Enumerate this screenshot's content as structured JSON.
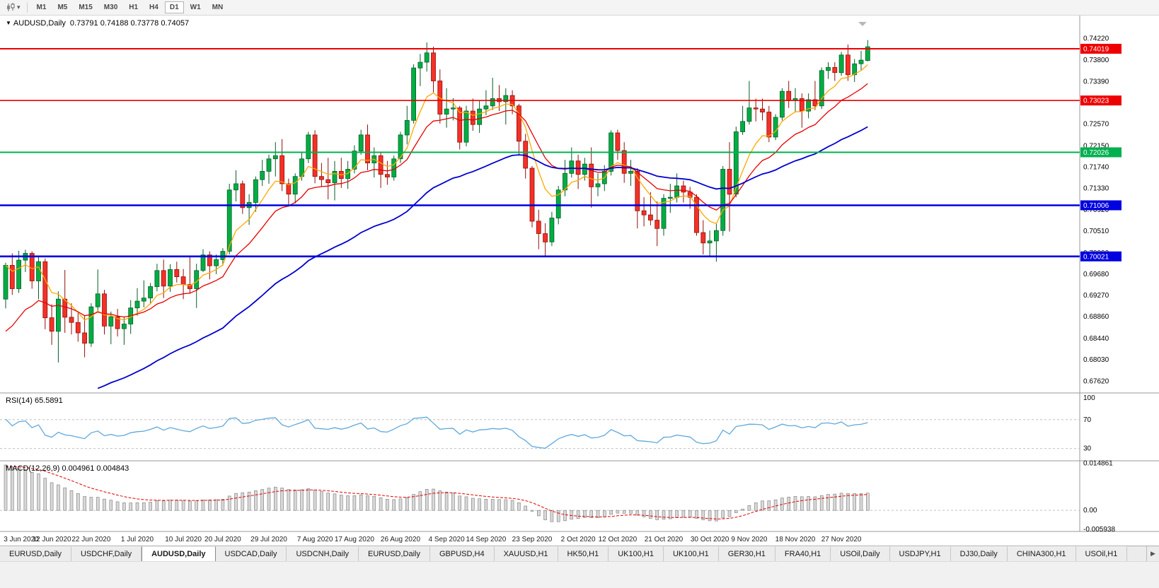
{
  "icons": {
    "dropdown_caret": "▾",
    "title_caret": "▼",
    "tab_scroll": "▶"
  },
  "toolbar": {
    "timeframes": [
      "M1",
      "M5",
      "M15",
      "M30",
      "H1",
      "H4",
      "D1",
      "W1",
      "MN"
    ],
    "active": "D1"
  },
  "chart": {
    "symbol": "AUDUSD,Daily",
    "ohlc": "0.73791 0.74188 0.73778 0.74057"
  },
  "indicators": {
    "rsi_label": "RSI(14) 65.5891",
    "macd_label": "MACD(12,26,9) 0.004961 0.004843"
  },
  "active_tab": 2,
  "tabs": [
    {
      "label": "EURUSD,Daily"
    },
    {
      "label": "USDCHF,Daily"
    },
    {
      "label": "AUDUSD,Daily"
    },
    {
      "label": "USDCAD,Daily"
    },
    {
      "label": "USDCNH,Daily"
    },
    {
      "label": "EURUSD,Daily"
    },
    {
      "label": "GBPUSD,H4"
    },
    {
      "label": "XAUUSD,H1"
    },
    {
      "label": "HK50,H1"
    },
    {
      "label": "UK100,H1"
    },
    {
      "label": "UK100,H1"
    },
    {
      "label": "GER30,H1"
    },
    {
      "label": "FRA40,H1"
    },
    {
      "label": "USOil,Daily"
    },
    {
      "label": "USDJPY,H1"
    },
    {
      "label": "DJ30,Daily"
    },
    {
      "label": "CHINA300,H1"
    },
    {
      "label": "USOil,H1"
    }
  ],
  "chart_data": {
    "type": "candlestick",
    "symbol": "AUDUSD",
    "timeframe": "Daily",
    "price_range": {
      "max": 0.7455,
      "min": 0.6742
    },
    "y_axis_labels": [
      "0.74220",
      "0.73800",
      "0.73390",
      "0.72980",
      "0.72570",
      "0.72150",
      "0.71740",
      "0.71330",
      "0.70920",
      "0.70510",
      "0.70090",
      "0.69680",
      "0.69270",
      "0.68860",
      "0.68440",
      "0.68030",
      "0.67620"
    ],
    "x_axis_labels": [
      {
        "i": 0,
        "label": "3 Jun 2020"
      },
      {
        "i": 7,
        "label": "12 Jun 2020"
      },
      {
        "i": 13,
        "label": "22 Jun 2020"
      },
      {
        "i": 20,
        "label": "1 Jul 2020"
      },
      {
        "i": 27,
        "label": "10 Jul 2020"
      },
      {
        "i": 33,
        "label": "20 Jul 2020"
      },
      {
        "i": 40,
        "label": "29 Jul 2020"
      },
      {
        "i": 47,
        "label": "7 Aug 2020"
      },
      {
        "i": 53,
        "label": "17 Aug 2020"
      },
      {
        "i": 60,
        "label": "26 Aug 2020"
      },
      {
        "i": 67,
        "label": "4 Sep 2020"
      },
      {
        "i": 73,
        "label": "14 Sep 2020"
      },
      {
        "i": 80,
        "label": "23 Sep 2020"
      },
      {
        "i": 87,
        "label": "2 Oct 2020"
      },
      {
        "i": 93,
        "label": "12 Oct 2020"
      },
      {
        "i": 100,
        "label": "21 Oct 2020"
      },
      {
        "i": 107,
        "label": "30 Oct 2020"
      },
      {
        "i": 113,
        "label": "9 Nov 2020"
      },
      {
        "i": 120,
        "label": "18 Nov 2020"
      },
      {
        "i": 127,
        "label": "27 Nov 2020"
      }
    ],
    "hlines": [
      {
        "price": 0.74019,
        "label": "0.74019",
        "color": "#ee0000",
        "width": 2
      },
      {
        "price": 0.73023,
        "label": "0.73023",
        "color": "#ee0000",
        "width": 1.6
      },
      {
        "price": 0.72026,
        "label": "0.72026",
        "color": "#00b050",
        "width": 2
      },
      {
        "price": 0.71006,
        "label": "0.71006",
        "color": "#0000e0",
        "width": 2.6
      },
      {
        "price": 0.70021,
        "label": "0.70021",
        "color": "#0000e0",
        "width": 2.6
      }
    ],
    "colors": {
      "up": "#00ad43",
      "up_border": "#055e28",
      "down": "#f53026",
      "down_border": "#8f100b"
    },
    "ma": [
      {
        "name": "ma-fast-line",
        "period": 7,
        "seed": 0.6985,
        "color": "#ffa800",
        "width": 1.3
      },
      {
        "name": "ma-mid-line",
        "period": 15,
        "seed": 0.684,
        "color": "#e60000",
        "width": 1.3
      },
      {
        "name": "ma-slow-line",
        "period": 45,
        "seed": 0.659,
        "color": "#0000d0",
        "width": 1.8
      }
    ],
    "rsi": {
      "label": "RSI(14)",
      "value": "65.5891",
      "seed_gain": 0.0016,
      "seed_loss": 0.00066,
      "levels": [
        70,
        30
      ],
      "axis": [
        {
          "v": 100,
          "label": "100"
        },
        {
          "v": 70,
          "label": "70"
        },
        {
          "v": 30,
          "label": "30"
        }
      ],
      "color": "#5fa8dc",
      "range_max": 105,
      "range_min": 15
    },
    "macd": {
      "label": "MACD(12,26,9)",
      "value": "0.004961",
      "signal_value": "0.004843",
      "seed_fast": 0.6895,
      "seed_slow": 0.6748,
      "seed_signal": 0.0138,
      "range_max": 0.0152,
      "range_min": -0.0062,
      "axis": [
        {
          "v": 0.014861,
          "label": "0.014861"
        },
        {
          "v": 0,
          "label": "0.00"
        },
        {
          "v": -0.005938,
          "label": "-0.005938"
        }
      ],
      "bar_fill": "#d8d8d8",
      "bar_stroke": "#7a7a7a",
      "signal_color": "#e60000"
    },
    "candles": [
      [
        0.692,
        0.699,
        0.6902,
        0.6985
      ],
      [
        0.6985,
        0.7008,
        0.6928,
        0.694
      ],
      [
        0.694,
        0.7013,
        0.6932,
        0.6995
      ],
      [
        0.6995,
        0.7015,
        0.6972,
        0.7008
      ],
      [
        0.7008,
        0.7012,
        0.694,
        0.6955
      ],
      [
        0.6955,
        0.7002,
        0.692,
        0.6992
      ],
      [
        0.6992,
        0.6998,
        0.6862,
        0.6884
      ],
      [
        0.6884,
        0.691,
        0.6832,
        0.6858
      ],
      [
        0.6858,
        0.6935,
        0.6798,
        0.692
      ],
      [
        0.692,
        0.6976,
        0.6855,
        0.6885
      ],
      [
        0.6885,
        0.6912,
        0.6852,
        0.6875
      ],
      [
        0.6875,
        0.6895,
        0.6838,
        0.6855
      ],
      [
        0.6855,
        0.6888,
        0.6808,
        0.6835
      ],
      [
        0.6835,
        0.6912,
        0.6828,
        0.6905
      ],
      [
        0.6905,
        0.6977,
        0.6898,
        0.693
      ],
      [
        0.693,
        0.6938,
        0.6852,
        0.6868
      ],
      [
        0.6868,
        0.6896,
        0.6833,
        0.6886
      ],
      [
        0.6886,
        0.6901,
        0.6848,
        0.6863
      ],
      [
        0.6863,
        0.6886,
        0.6832,
        0.6872
      ],
      [
        0.6872,
        0.6918,
        0.6853,
        0.6903
      ],
      [
        0.6903,
        0.6941,
        0.6888,
        0.6916
      ],
      [
        0.6916,
        0.6956,
        0.6904,
        0.6922
      ],
      [
        0.6922,
        0.6951,
        0.691,
        0.6944
      ],
      [
        0.6944,
        0.6988,
        0.6935,
        0.6975
      ],
      [
        0.6975,
        0.6996,
        0.6922,
        0.6945
      ],
      [
        0.6945,
        0.6987,
        0.6934,
        0.6977
      ],
      [
        0.6977,
        0.6992,
        0.6952,
        0.6963
      ],
      [
        0.6963,
        0.6978,
        0.692,
        0.6948
      ],
      [
        0.6948,
        0.7002,
        0.693,
        0.694
      ],
      [
        0.694,
        0.6988,
        0.6903,
        0.6975
      ],
      [
        0.6975,
        0.7016,
        0.6972,
        0.7005
      ],
      [
        0.7005,
        0.7012,
        0.6958,
        0.6984
      ],
      [
        0.6984,
        0.7006,
        0.6968,
        0.6996
      ],
      [
        0.6996,
        0.7018,
        0.6984,
        0.7012
      ],
      [
        0.7012,
        0.7142,
        0.7006,
        0.713
      ],
      [
        0.713,
        0.7168,
        0.7108,
        0.7142
      ],
      [
        0.7142,
        0.7148,
        0.7084,
        0.7096
      ],
      [
        0.7096,
        0.7122,
        0.7063,
        0.7106
      ],
      [
        0.7106,
        0.7156,
        0.7088,
        0.715
      ],
      [
        0.715,
        0.7188,
        0.7138,
        0.7166
      ],
      [
        0.7166,
        0.7198,
        0.7142,
        0.719
      ],
      [
        0.719,
        0.7222,
        0.7156,
        0.7196
      ],
      [
        0.7196,
        0.7228,
        0.7128,
        0.7142
      ],
      [
        0.7142,
        0.7152,
        0.7098,
        0.7122
      ],
      [
        0.7122,
        0.7162,
        0.7104,
        0.7156
      ],
      [
        0.7156,
        0.7202,
        0.7148,
        0.719
      ],
      [
        0.719,
        0.7242,
        0.7182,
        0.7236
      ],
      [
        0.7236,
        0.7245,
        0.7143,
        0.7156
      ],
      [
        0.7156,
        0.7182,
        0.7136,
        0.715
      ],
      [
        0.715,
        0.7192,
        0.7112,
        0.7144
      ],
      [
        0.7144,
        0.7186,
        0.711,
        0.7166
      ],
      [
        0.7166,
        0.7192,
        0.7134,
        0.7152
      ],
      [
        0.7152,
        0.7186,
        0.7132,
        0.717
      ],
      [
        0.717,
        0.7216,
        0.7162,
        0.7205
      ],
      [
        0.7205,
        0.7246,
        0.7198,
        0.7236
      ],
      [
        0.7236,
        0.7256,
        0.7168,
        0.7182
      ],
      [
        0.7182,
        0.7212,
        0.7154,
        0.7196
      ],
      [
        0.7196,
        0.7202,
        0.7134,
        0.716
      ],
      [
        0.716,
        0.7186,
        0.714,
        0.7155
      ],
      [
        0.7155,
        0.7196,
        0.7148,
        0.719
      ],
      [
        0.719,
        0.7242,
        0.7182,
        0.7236
      ],
      [
        0.7236,
        0.7292,
        0.7218,
        0.7264
      ],
      [
        0.7264,
        0.7372,
        0.7258,
        0.7365
      ],
      [
        0.7365,
        0.7392,
        0.733,
        0.7376
      ],
      [
        0.7376,
        0.7414,
        0.7358,
        0.7394
      ],
      [
        0.7394,
        0.7406,
        0.7318,
        0.734
      ],
      [
        0.734,
        0.7362,
        0.7258,
        0.7276
      ],
      [
        0.7276,
        0.7326,
        0.725,
        0.7286
      ],
      [
        0.7286,
        0.7307,
        0.7264,
        0.7288
      ],
      [
        0.7288,
        0.7292,
        0.7208,
        0.7222
      ],
      [
        0.7222,
        0.7292,
        0.7214,
        0.7282
      ],
      [
        0.7282,
        0.7306,
        0.7244,
        0.7256
      ],
      [
        0.7256,
        0.7302,
        0.724,
        0.7286
      ],
      [
        0.7286,
        0.7322,
        0.7274,
        0.7292
      ],
      [
        0.7292,
        0.7346,
        0.7284,
        0.7306
      ],
      [
        0.7306,
        0.7332,
        0.7282,
        0.73
      ],
      [
        0.73,
        0.7326,
        0.7256,
        0.7312
      ],
      [
        0.7312,
        0.7322,
        0.7276,
        0.7292
      ],
      [
        0.7292,
        0.7296,
        0.7198,
        0.7224
      ],
      [
        0.7224,
        0.7238,
        0.7152,
        0.7172
      ],
      [
        0.7172,
        0.7176,
        0.7058,
        0.707
      ],
      [
        0.707,
        0.7092,
        0.7016,
        0.7046
      ],
      [
        0.7046,
        0.7066,
        0.7004,
        0.703
      ],
      [
        0.703,
        0.7088,
        0.7022,
        0.7076
      ],
      [
        0.7076,
        0.7138,
        0.7064,
        0.713
      ],
      [
        0.713,
        0.7188,
        0.7118,
        0.7162
      ],
      [
        0.7162,
        0.7212,
        0.7154,
        0.7186
      ],
      [
        0.7186,
        0.7198,
        0.7132,
        0.716
      ],
      [
        0.716,
        0.7192,
        0.7148,
        0.718
      ],
      [
        0.718,
        0.7212,
        0.7096,
        0.7136
      ],
      [
        0.7136,
        0.7162,
        0.7118,
        0.7142
      ],
      [
        0.7142,
        0.7178,
        0.7128,
        0.7166
      ],
      [
        0.7166,
        0.7245,
        0.7158,
        0.724
      ],
      [
        0.724,
        0.7246,
        0.7188,
        0.7206
      ],
      [
        0.7206,
        0.7222,
        0.7144,
        0.7162
      ],
      [
        0.7162,
        0.7188,
        0.7138,
        0.7166
      ],
      [
        0.7166,
        0.7172,
        0.7056,
        0.709
      ],
      [
        0.709,
        0.7116,
        0.706,
        0.7082
      ],
      [
        0.7082,
        0.7126,
        0.7062,
        0.7072
      ],
      [
        0.7072,
        0.7108,
        0.7022,
        0.7056
      ],
      [
        0.7056,
        0.7122,
        0.7042,
        0.7114
      ],
      [
        0.7114,
        0.7142,
        0.7086,
        0.7116
      ],
      [
        0.7116,
        0.7162,
        0.7106,
        0.7138
      ],
      [
        0.7138,
        0.7148,
        0.7106,
        0.7126
      ],
      [
        0.7126,
        0.7136,
        0.7094,
        0.7116
      ],
      [
        0.7116,
        0.7122,
        0.7042,
        0.7048
      ],
      [
        0.7048,
        0.7072,
        0.7006,
        0.7028
      ],
      [
        0.7028,
        0.7052,
        0.7002,
        0.7032
      ],
      [
        0.7032,
        0.7066,
        0.6992,
        0.7052
      ],
      [
        0.7052,
        0.7176,
        0.7042,
        0.717
      ],
      [
        0.717,
        0.7222,
        0.705,
        0.7122
      ],
      [
        0.7122,
        0.7252,
        0.7116,
        0.7242
      ],
      [
        0.7242,
        0.7292,
        0.7236,
        0.7262
      ],
      [
        0.7262,
        0.734,
        0.7256,
        0.7288
      ],
      [
        0.7288,
        0.7306,
        0.7262,
        0.7286
      ],
      [
        0.7286,
        0.7306,
        0.7264,
        0.728
      ],
      [
        0.728,
        0.7292,
        0.7222,
        0.7232
      ],
      [
        0.7232,
        0.7276,
        0.7226,
        0.727
      ],
      [
        0.727,
        0.7326,
        0.7264,
        0.732
      ],
      [
        0.732,
        0.734,
        0.7288,
        0.7302
      ],
      [
        0.7302,
        0.7326,
        0.728,
        0.7306
      ],
      [
        0.7306,
        0.7316,
        0.725,
        0.7282
      ],
      [
        0.7282,
        0.7316,
        0.7268,
        0.7304
      ],
      [
        0.7304,
        0.734,
        0.7284,
        0.7292
      ],
      [
        0.7292,
        0.7366,
        0.7286,
        0.736
      ],
      [
        0.736,
        0.7376,
        0.7344,
        0.7366
      ],
      [
        0.7366,
        0.7376,
        0.734,
        0.7356
      ],
      [
        0.7356,
        0.7396,
        0.735,
        0.739
      ],
      [
        0.739,
        0.741,
        0.734,
        0.7352
      ],
      [
        0.7352,
        0.7382,
        0.7338,
        0.7373
      ],
      [
        0.7373,
        0.7398,
        0.736,
        0.738
      ],
      [
        0.73791,
        0.74188,
        0.73778,
        0.74057
      ]
    ]
  }
}
